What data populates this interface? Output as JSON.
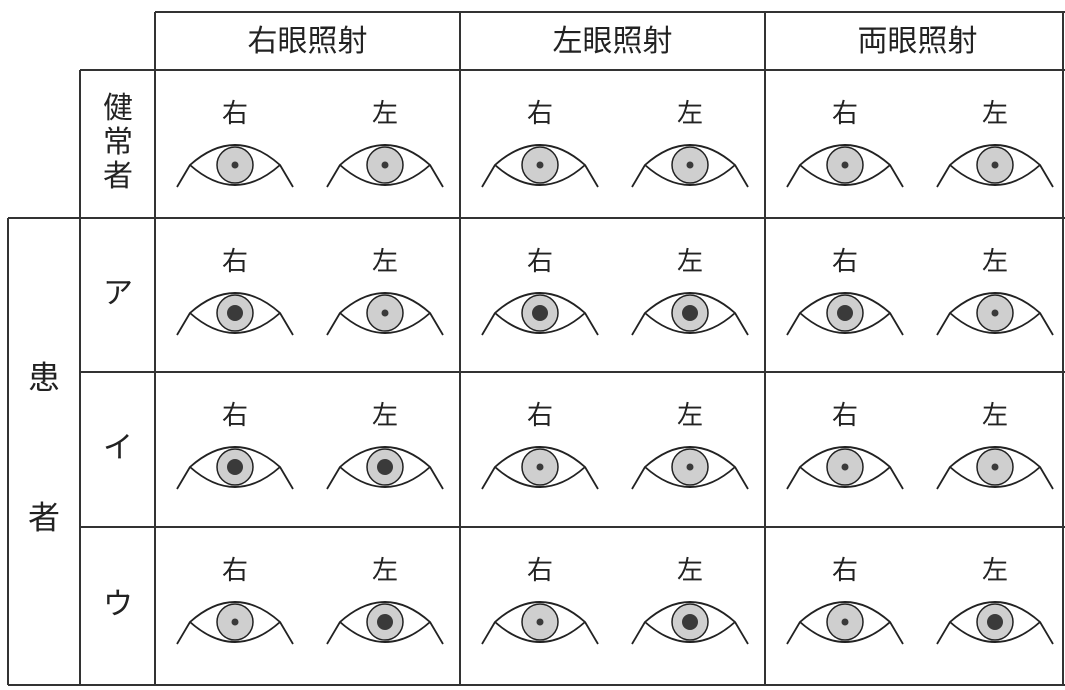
{
  "header": {
    "columns": [
      "右眼照射",
      "左眼照射",
      "両眼照射"
    ]
  },
  "group_label": "患者",
  "rows": [
    {
      "label": "健常者",
      "cells": [
        [
          "右",
          "左"
        ],
        [
          "右",
          "左"
        ],
        [
          "右",
          "左"
        ]
      ]
    },
    {
      "label": "ア",
      "cells": [
        [
          "右",
          "左"
        ],
        [
          "右",
          "左"
        ],
        [
          "右",
          "左"
        ]
      ]
    },
    {
      "label": "イ",
      "cells": [
        [
          "右",
          "左"
        ],
        [
          "右",
          "左"
        ],
        [
          "右",
          "左"
        ]
      ]
    },
    {
      "label": "ウ",
      "cells": [
        [
          "右",
          "左"
        ],
        [
          "右",
          "左"
        ],
        [
          "右",
          "左"
        ]
      ]
    }
  ]
}
